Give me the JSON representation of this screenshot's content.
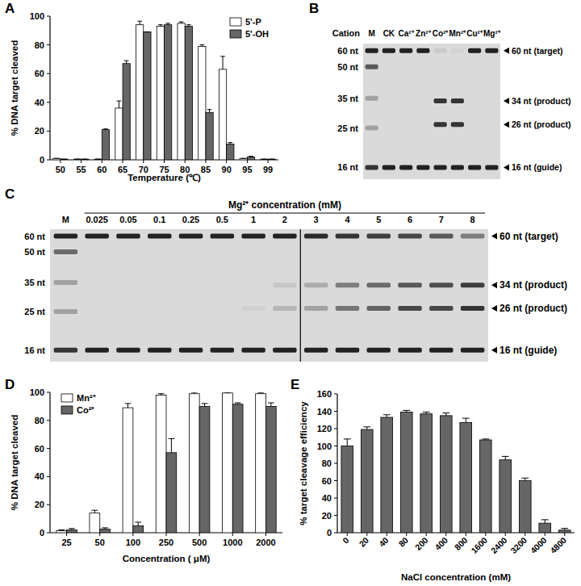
{
  "panel_labels": [
    "A",
    "B",
    "C",
    "D",
    "E"
  ],
  "chart_data": [
    {
      "type": "bar",
      "x_label": "Temperature (℃)",
      "y_label": "% DNA target cleaved",
      "categories": [
        "50",
        "55",
        "60",
        "65",
        "70",
        "75",
        "80",
        "85",
        "90",
        "95",
        "99"
      ],
      "series": [
        {
          "name": "5'-P",
          "color": "#ffffff",
          "values": [
            1,
            0.5,
            0.5,
            36,
            94,
            93,
            95,
            79,
            63,
            1,
            0.5
          ],
          "errors": [
            0,
            0,
            0,
            5,
            2.5,
            1,
            1,
            1,
            9,
            0,
            0
          ]
        },
        {
          "name": "5'-OH",
          "color": "#666666",
          "values": [
            0.5,
            0.5,
            21,
            67,
            89,
            94,
            93,
            33,
            11,
            2,
            0.5
          ],
          "errors": [
            0,
            0,
            0.5,
            2,
            0,
            1,
            1,
            2,
            1,
            0.5,
            0
          ]
        }
      ],
      "ylim": [
        0,
        100
      ],
      "yticks": [
        0,
        20,
        40,
        60,
        80,
        100
      ],
      "legend": "top-right"
    },
    {
      "type": "bar",
      "x_label": "Concentration ( μM)",
      "y_label": "% DNA target cleaved",
      "categories": [
        "25",
        "50",
        "100",
        "250",
        "500",
        "1000",
        "2000"
      ],
      "series": [
        {
          "name": "Mn²⁺",
          "color": "#ffffff",
          "values": [
            1.5,
            14,
            89,
            98,
            99,
            99.5,
            99
          ],
          "errors": [
            0.5,
            2,
            3,
            1,
            1,
            0.5,
            0.5
          ]
        },
        {
          "name": "Co²⁺",
          "color": "#666666",
          "values": [
            2,
            2.5,
            5,
            57,
            90,
            91.5,
            90
          ],
          "errors": [
            1,
            1,
            2.5,
            10,
            2,
            1,
            2.5
          ]
        }
      ],
      "ylim": [
        0,
        100
      ],
      "yticks": [
        0,
        20,
        40,
        60,
        80,
        100
      ],
      "legend": "top-left"
    },
    {
      "type": "bar",
      "x_label": "NaCl concentration (mM)",
      "y_label": "% target cleavage efficiency",
      "categories": [
        "0",
        "20",
        "40",
        "80",
        "200",
        "400",
        "800",
        "1600",
        "2400",
        "3200",
        "4000",
        "4800"
      ],
      "values": [
        100,
        119,
        133,
        139,
        137,
        135,
        127,
        107,
        84,
        60,
        11,
        3
      ],
      "errors": [
        8,
        3,
        3,
        2,
        2,
        3,
        5,
        1,
        4,
        3,
        4,
        2
      ],
      "color": "#666666",
      "ylim": [
        0,
        160
      ],
      "yticks": [
        0,
        20,
        40,
        60,
        80,
        100,
        120,
        140,
        160
      ]
    }
  ],
  "gels": [
    {
      "header": "Cation",
      "lanes": [
        "M",
        "CK",
        "Ca²⁺",
        "Zn²⁺",
        "Co²⁺",
        "Mn²⁺",
        "Cu²⁺",
        "Mg²⁺"
      ],
      "size_range": [
        65,
        14
      ],
      "markers": [
        {
          "label": "60 nt",
          "size": 60,
          "intensity": 1
        },
        {
          "label": "50 nt",
          "size": 50,
          "intensity": 0.7
        },
        {
          "label": "35 nt",
          "size": 35,
          "intensity": 0.3
        },
        {
          "label": "25 nt",
          "size": 25,
          "intensity": 0.3
        },
        {
          "label": "16 nt",
          "size": 16,
          "intensity": 0.9
        }
      ],
      "bands": [
        {
          "label": "60 nt (target)",
          "size": 60,
          "intensity": [
            0,
            1,
            1,
            1,
            0.08,
            0.04,
            1,
            1
          ]
        },
        {
          "label": "34 nt (product)",
          "size": 34,
          "intensity": [
            0,
            0,
            0,
            0,
            0.9,
            0.9,
            0,
            0
          ]
        },
        {
          "label": "26 nt (product)",
          "size": 26,
          "intensity": [
            0,
            0,
            0,
            0,
            0.9,
            0.9,
            0,
            0
          ]
        },
        {
          "label": "16 nt (guide)",
          "size": 16,
          "intensity": [
            0,
            1,
            1,
            1,
            1,
            1,
            1,
            1
          ]
        }
      ]
    },
    {
      "header": "Mg²⁺ concentration (mM)",
      "lanes": [
        "M",
        "0.025",
        "0.05",
        "0.1",
        "0.25",
        "0.5",
        "1",
        "2",
        "3",
        "4",
        "5",
        "6",
        "7",
        "8"
      ],
      "size_range": [
        65,
        14
      ],
      "divider_after": 7,
      "markers": [
        {
          "label": "60 nt",
          "size": 60,
          "intensity": 1
        },
        {
          "label": "50 nt",
          "size": 50,
          "intensity": 0.6
        },
        {
          "label": "35 nt",
          "size": 35,
          "intensity": 0.3
        },
        {
          "label": "25 nt",
          "size": 25,
          "intensity": 0.3
        },
        {
          "label": "16 nt",
          "size": 16,
          "intensity": 0.9
        }
      ],
      "bands": [
        {
          "label": "60 nt (target)",
          "size": 60,
          "intensity": [
            0,
            1,
            1,
            1,
            1,
            1,
            1,
            1,
            0.95,
            0.9,
            0.85,
            0.8,
            0.7,
            0.5
          ]
        },
        {
          "label": "34 nt (product)",
          "size": 34,
          "intensity": [
            0,
            0,
            0,
            0,
            0,
            0,
            0,
            0.1,
            0.25,
            0.5,
            0.6,
            0.7,
            0.75,
            0.85
          ]
        },
        {
          "label": "26 nt (product)",
          "size": 26,
          "intensity": [
            0,
            0,
            0,
            0,
            0,
            0,
            0.05,
            0.2,
            0.3,
            0.55,
            0.65,
            0.8,
            0.8,
            0.9
          ]
        },
        {
          "label": "16 nt (guide)",
          "size": 16,
          "intensity": [
            0,
            1,
            1,
            1,
            1,
            1,
            1,
            1,
            1,
            1,
            1,
            1,
            1,
            1
          ]
        }
      ]
    }
  ]
}
